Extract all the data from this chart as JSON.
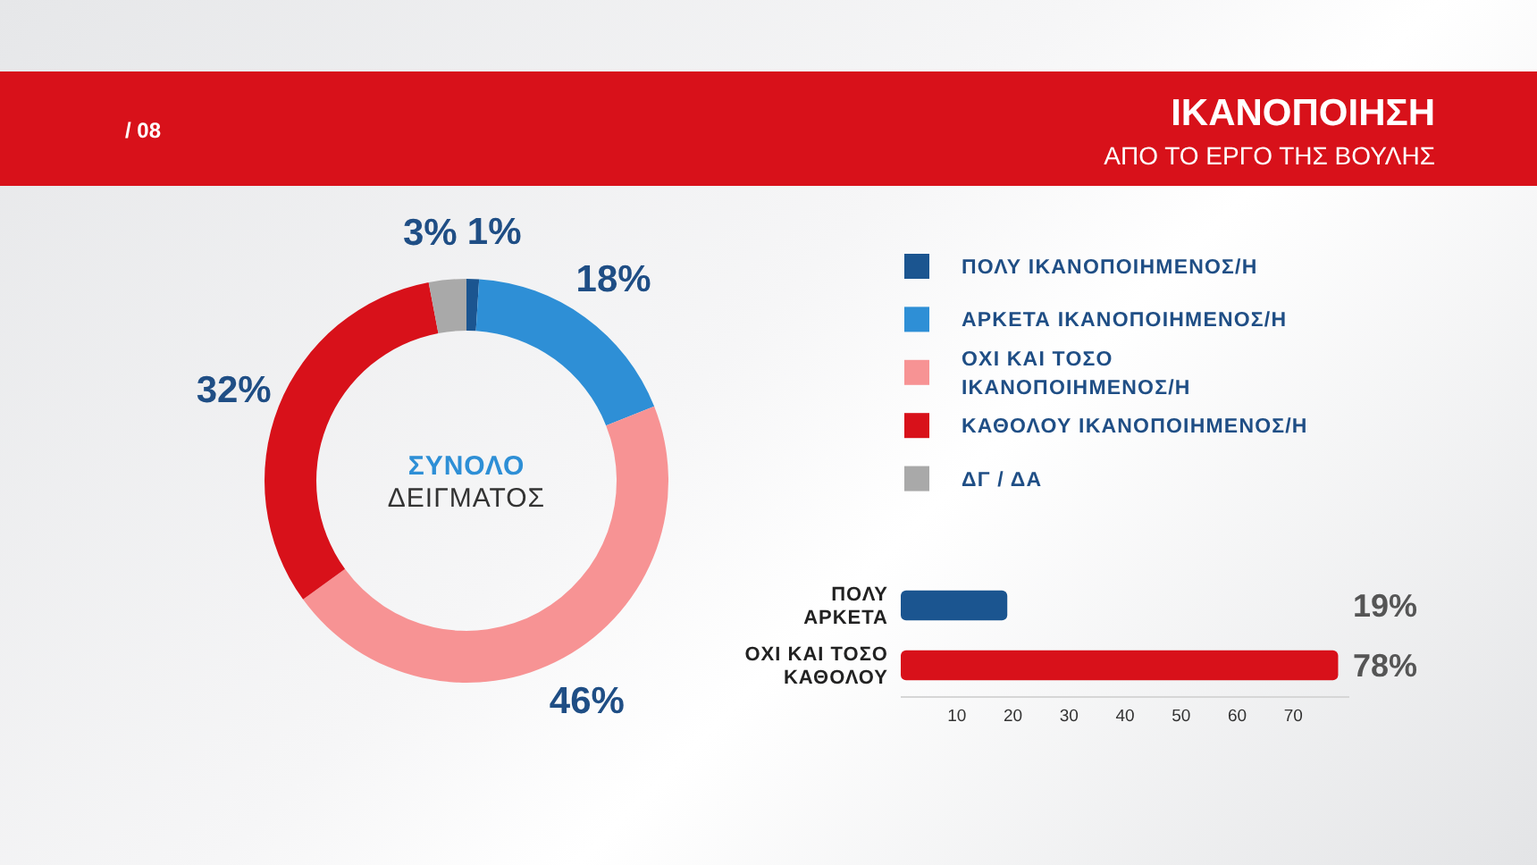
{
  "chart_data": [
    {
      "type": "donut",
      "title": "ΙΚΑΝΟΠΟΙΗΣΗ",
      "subtitle": "ΑΠΟ ΤΟ ΕΡΓΟ ΤΗΣ ΒΟΥΛΗΣ",
      "annotations": [
        "/ 08",
        "ΣΥΝΟΛΟ\nΔΕΙΓΜΑΤΟΣ"
      ],
      "categories": [
        "ΠΟΛΥ ΙΚΑΝΟΠΟΙΗΜΕΝΟΣ/Η",
        "ΑΡΚΕΤΑ ΙΚΑΝΟΠΟΙΗΜΕΝΟΣ/Η",
        "ΟΧΙ ΚΑΙ ΤΟΣΟ\nΙΚΑΝΟΠΟΙΗΜΕΝΟΣ/Η",
        "ΚΑΘΟΛΟΥ ΙΚΑΝΟΠΟΙΗΜΕΝΟΣ/Η",
        "ΔΓ / ΔΑ"
      ],
      "values": [
        1,
        18,
        46,
        32,
        3
      ],
      "colors": [
        "#1b5590",
        "#2e8fd6",
        "#f79394",
        "#d8111a",
        "#a9a9a9"
      ],
      "value_labels": [
        "1%",
        "18%",
        "46%",
        "32%",
        "3%"
      ],
      "legend": "right"
    },
    {
      "type": "bar",
      "orientation": "horizontal",
      "categories": [
        "ΠΟΛΥ\nΑΡΚΕΤΑ",
        "ΟΧΙ ΚΑΙ ΤΟΣΟ\nΚΑΘΟΛΟΥ"
      ],
      "values": [
        19,
        78
      ],
      "colors": [
        "#1b5590",
        "#d8111a"
      ],
      "value_labels": [
        "19%",
        "78%"
      ],
      "xlim": [
        0,
        80
      ],
      "xticks": [
        10,
        20,
        30,
        40,
        50,
        60,
        70
      ]
    }
  ]
}
